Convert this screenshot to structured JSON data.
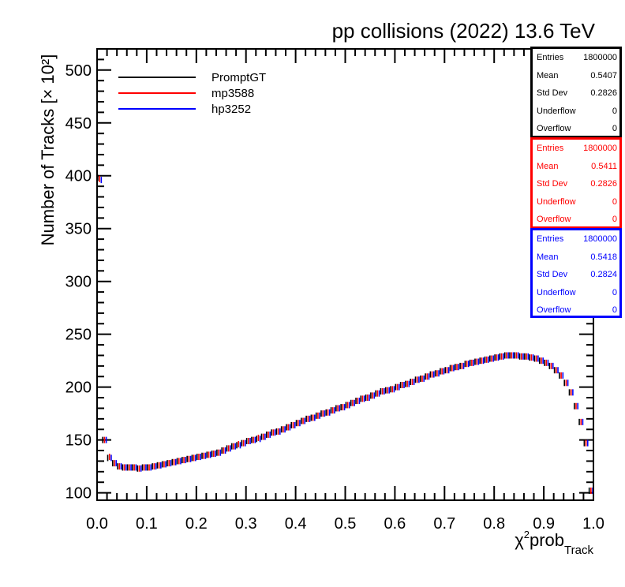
{
  "title": "pp collisions (2022) 13.6 TeV",
  "chart_data": {
    "type": "line",
    "ylabel": "Number of Tracks [× 10²]",
    "xlabel_main": "χ",
    "xlabel_sup": "2",
    "xlabel_mid": "prob",
    "xlabel_sub": "Track",
    "xlim": [
      0.0,
      1.0
    ],
    "ylim": [
      93,
      520
    ],
    "xticks": [
      "0.0",
      "0.1",
      "0.2",
      "0.3",
      "0.4",
      "0.5",
      "0.6",
      "0.7",
      "0.8",
      "0.9",
      "1.0"
    ],
    "yticks": [
      "100",
      "150",
      "200",
      "250",
      "300",
      "350",
      "400",
      "450",
      "500"
    ],
    "bins": 100,
    "series": [
      {
        "name": "PromptGT",
        "color": "#000000",
        "values": [
          398,
          150,
          133,
          128,
          125,
          124,
          124,
          124,
          123,
          124,
          124,
          125,
          126,
          127,
          128,
          129,
          130,
          131,
          132,
          133,
          134,
          135,
          136,
          137,
          138,
          140,
          142,
          144,
          145,
          147,
          149,
          150,
          151,
          153,
          155,
          157,
          158,
          160,
          162,
          164,
          166,
          168,
          170,
          171,
          173,
          175,
          176,
          178,
          180,
          181,
          183,
          185,
          187,
          189,
          190,
          192,
          194,
          196,
          197,
          198,
          200,
          202,
          203,
          205,
          207,
          208,
          210,
          212,
          213,
          215,
          216,
          218,
          219,
          220,
          222,
          223,
          224,
          225,
          226,
          227,
          228,
          229,
          230,
          230,
          230,
          229,
          229,
          228,
          227,
          225,
          223,
          220,
          216,
          211,
          204,
          195,
          182,
          167,
          147,
          102
        ]
      },
      {
        "name": "mp3588",
        "color": "#ff0000",
        "values": [
          397,
          150,
          134,
          128,
          125,
          124,
          124,
          124,
          123,
          124,
          124,
          125,
          126,
          127,
          128,
          129,
          130,
          131,
          132,
          133,
          134,
          135,
          136,
          137,
          138,
          140,
          142,
          144,
          146,
          147,
          149,
          150,
          152,
          153,
          155,
          157,
          158,
          160,
          162,
          164,
          166,
          168,
          170,
          171,
          173,
          175,
          176,
          178,
          180,
          181,
          183,
          185,
          187,
          189,
          190,
          192,
          194,
          196,
          197,
          198,
          200,
          202,
          203,
          205,
          207,
          208,
          210,
          212,
          213,
          215,
          216,
          218,
          219,
          220,
          222,
          223,
          224,
          225,
          226,
          227,
          228,
          229,
          230,
          230,
          230,
          229,
          229,
          228,
          227,
          225,
          223,
          220,
          216,
          211,
          204,
          195,
          182,
          167,
          147,
          102
        ]
      },
      {
        "name": "hp3252",
        "color": "#0000ff",
        "values": [
          396,
          150,
          133,
          128,
          125,
          124,
          124,
          124,
          123,
          124,
          124,
          125,
          126,
          127,
          128,
          129,
          130,
          131,
          132,
          133,
          134,
          135,
          136,
          137,
          138,
          140,
          142,
          144,
          145,
          147,
          149,
          150,
          151,
          153,
          155,
          157,
          158,
          160,
          162,
          164,
          166,
          168,
          170,
          171,
          173,
          175,
          176,
          178,
          180,
          181,
          183,
          185,
          187,
          189,
          190,
          192,
          194,
          196,
          197,
          198,
          200,
          202,
          203,
          205,
          207,
          208,
          210,
          212,
          213,
          215,
          216,
          218,
          219,
          220,
          222,
          223,
          224,
          225,
          226,
          227,
          228,
          229,
          230,
          230,
          230,
          229,
          229,
          228,
          227,
          225,
          223,
          220,
          216,
          211,
          204,
          195,
          182,
          167,
          147,
          102
        ]
      }
    ]
  },
  "legend": [
    {
      "label": "PromptGT",
      "color": "#000000"
    },
    {
      "label": "mp3588",
      "color": "#ff0000"
    },
    {
      "label": "hp3252",
      "color": "#0000ff"
    }
  ],
  "statboxes": [
    {
      "color": "#000000",
      "rows": [
        {
          "label": "Entries",
          "value": "1800000"
        },
        {
          "label": "Mean",
          "value": "0.5407"
        },
        {
          "label": "Std Dev",
          "value": "0.2826"
        },
        {
          "label": "Underflow",
          "value": "0"
        },
        {
          "label": "Overflow",
          "value": "0"
        }
      ]
    },
    {
      "color": "#ff0000",
      "rows": [
        {
          "label": "Entries",
          "value": "1800000"
        },
        {
          "label": "Mean",
          "value": "0.5411"
        },
        {
          "label": "Std Dev",
          "value": "0.2826"
        },
        {
          "label": "Underflow",
          "value": "0"
        },
        {
          "label": "Overflow",
          "value": "0"
        }
      ]
    },
    {
      "color": "#0000ff",
      "rows": [
        {
          "label": "Entries",
          "value": "1800000"
        },
        {
          "label": "Mean",
          "value": "0.5418"
        },
        {
          "label": "Std Dev",
          "value": "0.2824"
        },
        {
          "label": "Underflow",
          "value": "0"
        },
        {
          "label": "Overflow",
          "value": "0"
        }
      ]
    }
  ]
}
